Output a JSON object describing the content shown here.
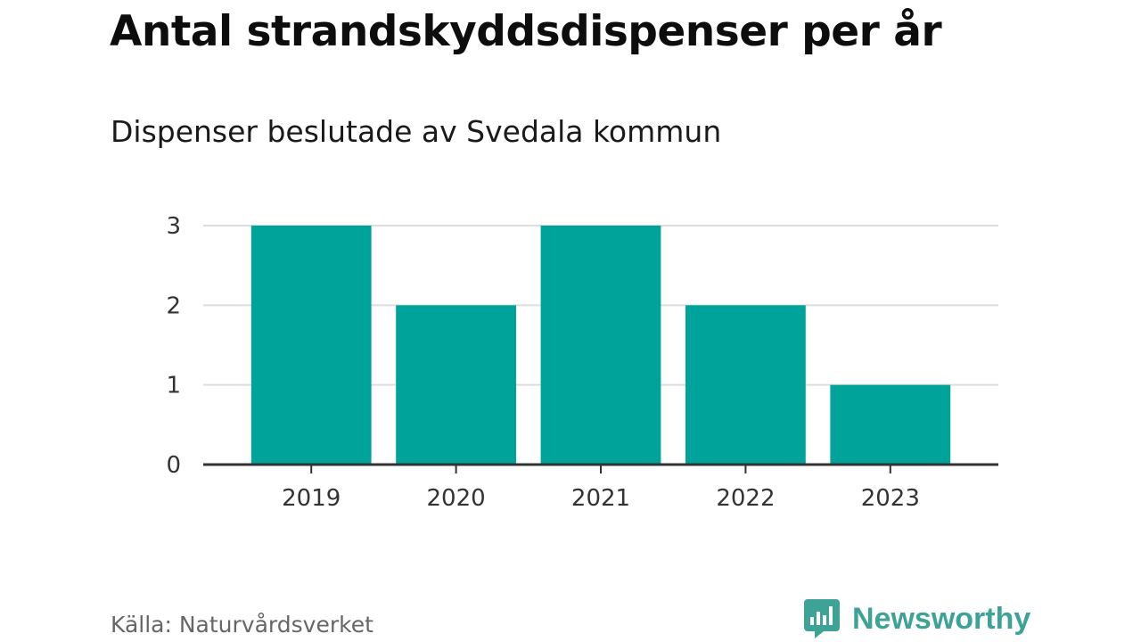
{
  "header": {
    "title": "Antal strandskyddsdispenser per år",
    "subtitle": "Dispenser beslutade av Svedala kommun"
  },
  "footer": {
    "source": "Källa: Naturvårdsverket",
    "brand": "Newsworthy",
    "brand_icon": "newsworthy-logo-icon"
  },
  "colors": {
    "bar": "#00a39a",
    "grid": "#dddddd",
    "axis": "#333333",
    "brand": "#3da396"
  },
  "chart_data": {
    "type": "bar",
    "title": "Antal strandskyddsdispenser per år",
    "subtitle": "Dispenser beslutade av Svedala kommun",
    "categories": [
      "2019",
      "2020",
      "2021",
      "2022",
      "2023"
    ],
    "values": [
      3,
      2,
      3,
      2,
      1
    ],
    "xlabel": "",
    "ylabel": "",
    "ylim": [
      0,
      3
    ],
    "yticks": [
      0,
      1,
      2,
      3
    ],
    "grid": true,
    "legend": "none"
  }
}
